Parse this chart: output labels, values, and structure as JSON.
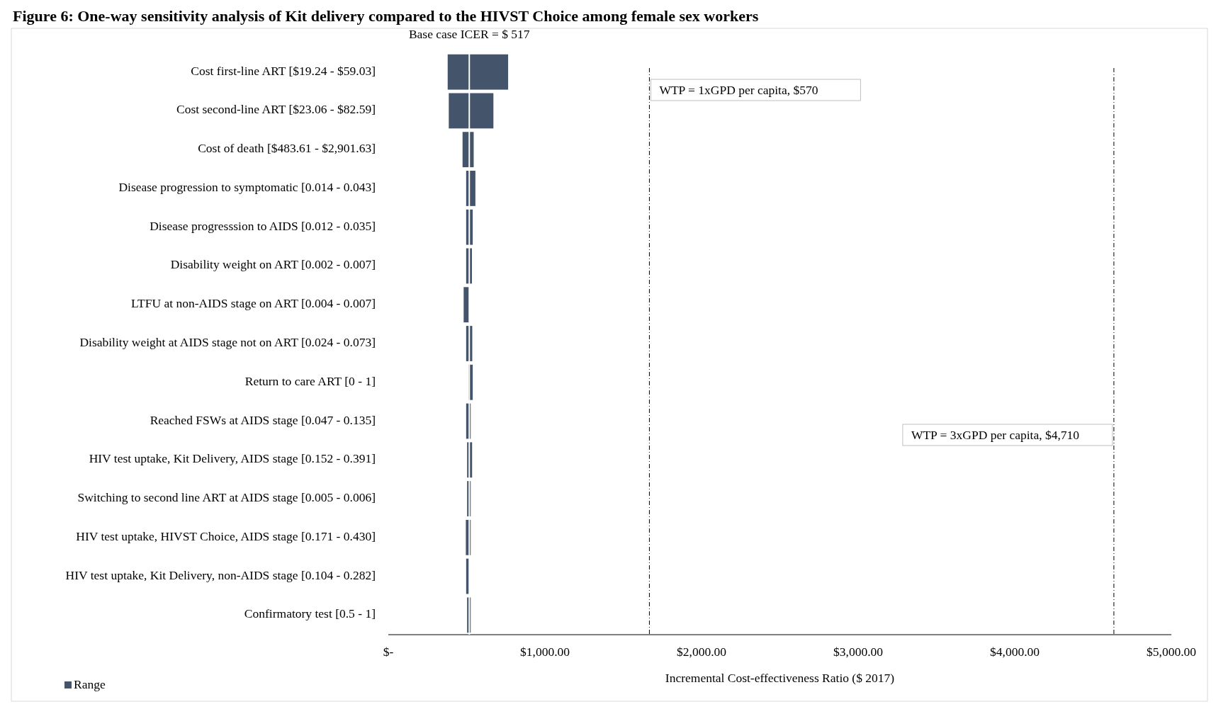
{
  "chart_data": {
    "type": "bar",
    "orientation": "horizontal",
    "title": "Figure 6: One-way sensitivity analysis of Kit delivery compared to the HIVST Choice among female sex workers",
    "xlabel": "Incremental Cost-effectiveness Ratio ($ 2017)",
    "categories": [
      "Cost first-line ART [$19.24 - $59.03]",
      "Cost second-line ART [$23.06 - $82.59]",
      "Cost of death [$483.61 - $2,901.63]",
      "Disease progression to symptomatic [0.014 - 0.043]",
      "Disease progresssion to AIDS [0.012 - 0.035]",
      "Disability weight on ART [0.002 - 0.007]",
      "LTFU at non-AIDS stage on ART [0.004 - 0.007]",
      "Disability weight at AIDS stage not on ART [0.024 - 0.073]",
      "Return to care ART [0 - 1]",
      "Reached FSWs at  AIDS stage [0.047 - 0.135]",
      "HIV test uptake, Kit Delivery,  AIDS stage [0.152 - 0.391]",
      "Switching to second line ART at AIDS stage [0.005 - 0.006]",
      "HIV test uptake, HIVST Choice,  AIDS stage [0.171 - 0.430]",
      "HIV test uptake, Kit Delivery,  non-AIDS stage [0.104 - 0.282]",
      "Confirmatory test [0.5 - 1]"
    ],
    "series": [
      {
        "name": "Range",
        "color": "#44546a",
        "base": [
          379,
          386,
          474,
          497,
          497,
          497,
          481,
          497,
          512,
          497,
          503,
          503,
          495,
          497,
          503
        ],
        "values": [
          386,
          285,
          71,
          59,
          42,
          37,
          36,
          39,
          27,
          29,
          32,
          23,
          31,
          20,
          23
        ]
      }
    ],
    "xlim": [
      0,
      5000
    ],
    "xticks": [
      {
        "value": 0,
        "label": "$-"
      },
      {
        "value": 1000,
        "label": "$1,000.00"
      },
      {
        "value": 2000,
        "label": "$2,000.00"
      },
      {
        "value": 3000,
        "label": "$3,000.00"
      },
      {
        "value": 4000,
        "label": "$4,000.00"
      },
      {
        "value": 5000,
        "label": "$5,000.00"
      }
    ],
    "ref_lines": [
      {
        "axis": "x",
        "value": 517,
        "label": "Base case ICER = $ 517",
        "color": "#ffffff",
        "line_style": "solid"
      },
      {
        "axis": "x",
        "value": 1667,
        "color": "#000000",
        "line_style": "dashed"
      },
      {
        "axis": "x",
        "value": 4633,
        "color": "#000000",
        "line_style": "dashed"
      }
    ],
    "annotations": [
      "WTP = 1xGPD per capita, $570",
      "WTP = 3xGPD per capita, $4,710"
    ],
    "grid": false,
    "legend": "bottom left"
  }
}
